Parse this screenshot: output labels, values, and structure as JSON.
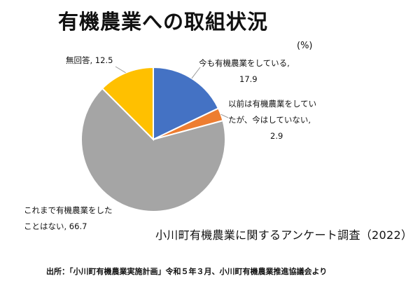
{
  "title": "有機農業への取組状況",
  "unit": "(%)",
  "subtitle": "小川町有機農業に関するアンケート調査（2022）",
  "source": "出所：「小川町有機農業実施計画」令和５年３月、小川町有機農業推進協議会より",
  "chart_data": {
    "type": "pie",
    "title": "有機農業への取組状況",
    "unit": "(%)",
    "slices": [
      {
        "label_lines": [
          "今も有機農業をしている,",
          "17.9"
        ],
        "value": 17.9,
        "color": "#4472C4"
      },
      {
        "label_lines": [
          "以前は有機農業をしてい",
          "たが、今はしていない,",
          "2.9"
        ],
        "value": 2.9,
        "color": "#ED7D31"
      },
      {
        "label_lines": [
          "これまで有機農業をした",
          "ことはない, 66.7"
        ],
        "value": 66.7,
        "color": "#A5A5A5"
      },
      {
        "label_lines": [
          "無回答, 12.5"
        ],
        "value": 12.5,
        "color": "#FFC000"
      }
    ]
  }
}
